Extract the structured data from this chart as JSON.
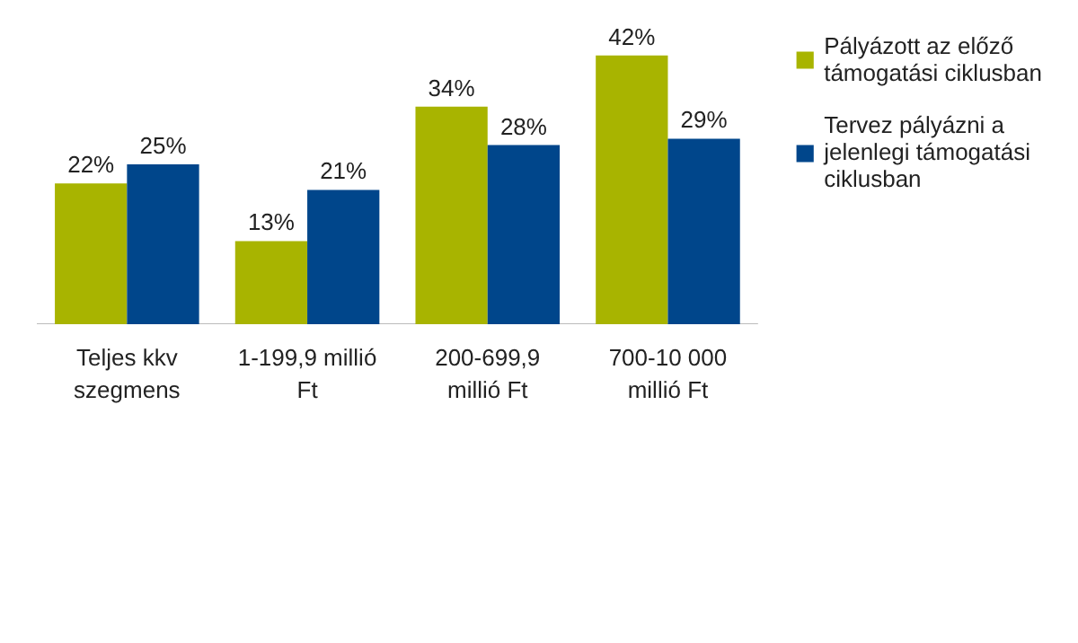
{
  "chart_data": {
    "type": "bar",
    "categories": [
      "Teljes kkv szegmens",
      "1-199,9 millió Ft",
      "200-699,9 millió Ft",
      "700-10 000 millió Ft"
    ],
    "series": [
      {
        "name": "Pályázott az előző támogatási ciklusban",
        "color": "#a8b400",
        "values": [
          22,
          13,
          34,
          42
        ],
        "value_labels": [
          "22%",
          "13%",
          "34%",
          "42%"
        ]
      },
      {
        "name": "Tervez pályázni a jelenlegi támogatási ciklusban",
        "color": "#00468b",
        "values": [
          25,
          21,
          28,
          29
        ],
        "value_labels": [
          "25%",
          "21%",
          "28%",
          "29%"
        ]
      }
    ],
    "legend": "right"
  }
}
